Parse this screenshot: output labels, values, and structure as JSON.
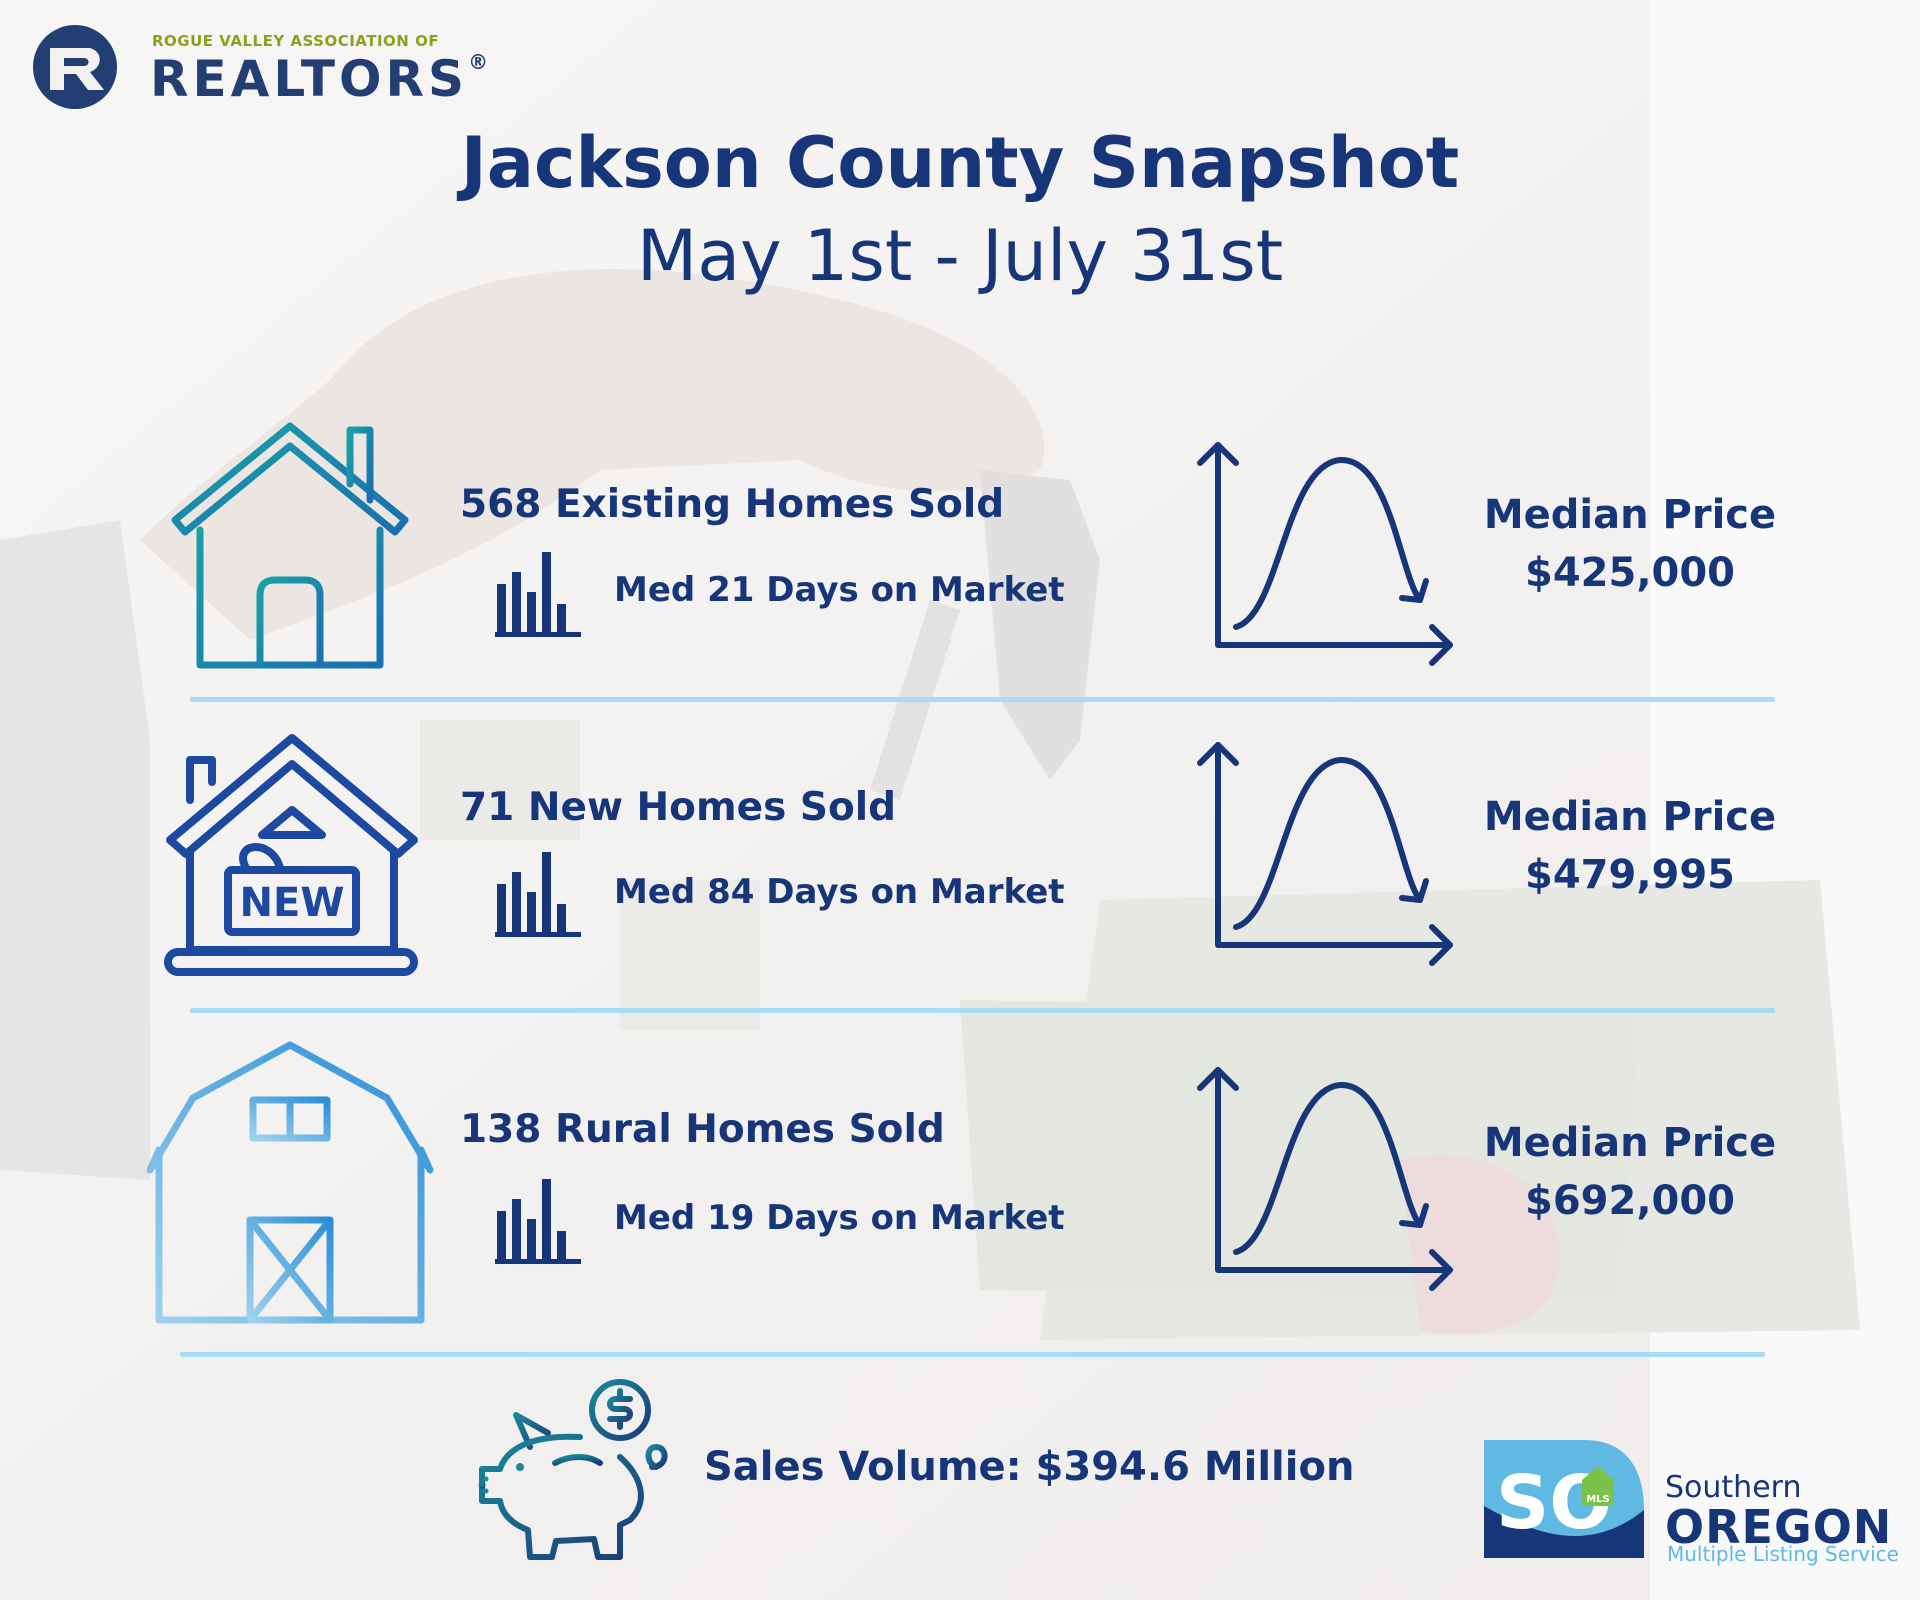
{
  "header": {
    "logo_small": "ROGUE VALLEY ASSOCIATION OF",
    "logo_big": "REALTORS",
    "logo_mark": "®",
    "title": "Jackson County Snapshot",
    "subtitle": "May 1st - July 31st"
  },
  "rows": [
    {
      "icon": "house-icon",
      "headline": "568 Existing Homes Sold",
      "days": "Med 21 Days on Market",
      "median_label": "Median Price",
      "median_value": "$425,000"
    },
    {
      "icon": "new-house-icon",
      "icon_text": "NEW",
      "headline": "71 New Homes Sold",
      "days": "Med 84 Days on Market",
      "median_label": "Median Price",
      "median_value": "$479,995"
    },
    {
      "icon": "barn-icon",
      "headline": "138 Rural Homes Sold",
      "days": "Med 19 Days on Market",
      "median_label": "Median Price",
      "median_value": "$692,000"
    }
  ],
  "footer": {
    "icon": "piggy-bank-icon",
    "sales_volume": "Sales Volume: $394.6 Million",
    "mls_logo_letters": "SO",
    "mls_logo_small": "MLS",
    "mls_line1": "Southern",
    "mls_line2": "OREGON",
    "mls_line3": "Multiple Listing Service"
  },
  "colors": {
    "navy": "#17367a",
    "teal": "#1b9aa8",
    "light_blue": "#a7dcf2",
    "sky": "#5fb9e3"
  }
}
